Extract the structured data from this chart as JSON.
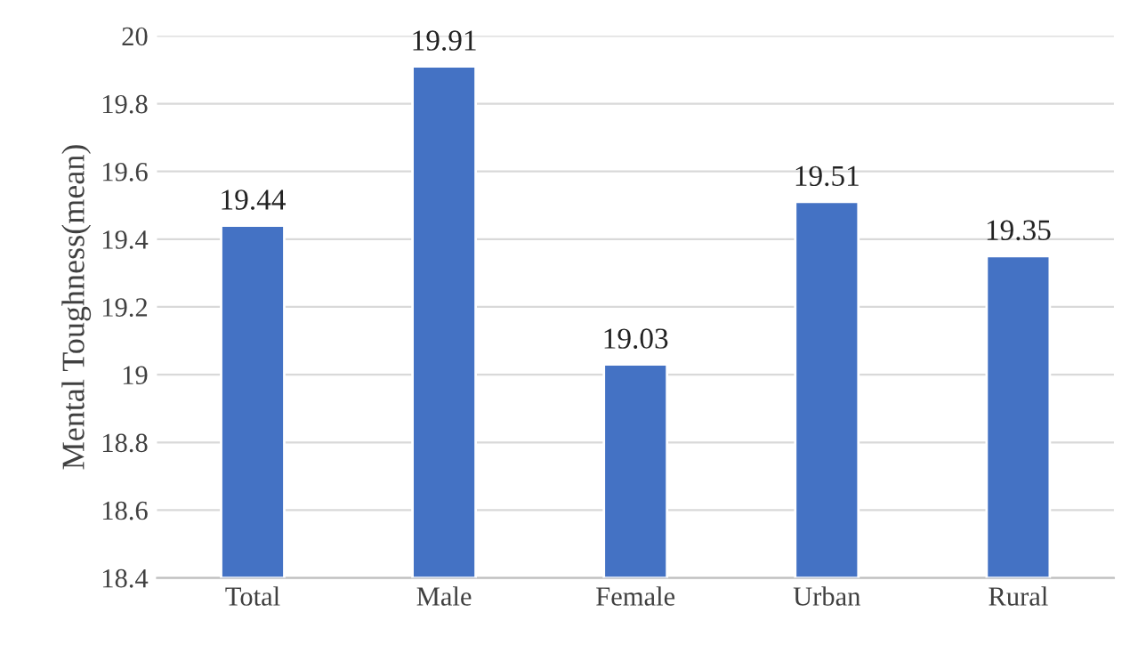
{
  "chart_data": {
    "type": "bar",
    "ylabel": "Mental Toughness(mean)",
    "categories": [
      "Total",
      "Male",
      "Female",
      "Urban",
      "Rural"
    ],
    "values": [
      19.44,
      19.91,
      19.03,
      19.51,
      19.35
    ],
    "color": "#4472c4",
    "ylim": [
      18.4,
      20
    ],
    "yticks": [
      18.4,
      18.6,
      18.8,
      19,
      19.2,
      19.4,
      19.6,
      19.8,
      20
    ],
    "grid": "y",
    "data_labels": true
  }
}
